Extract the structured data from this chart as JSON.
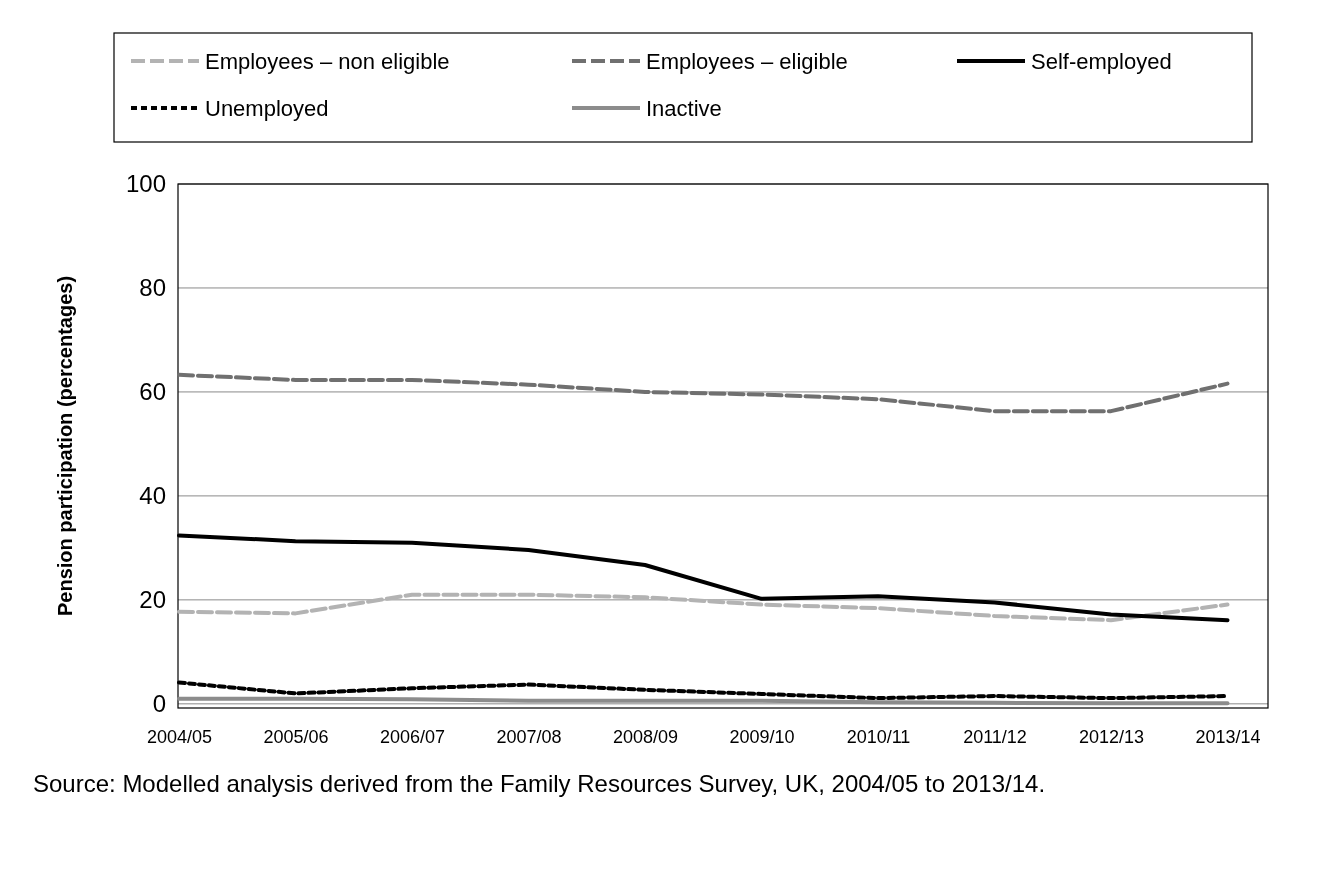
{
  "chart_data": {
    "type": "line",
    "ylabel": "Pension participation (percentages)",
    "categories": [
      "2004/05",
      "2005/06",
      "2006/07",
      "2007/08",
      "2008/09",
      "2009/10",
      "2010/11",
      "2011/12",
      "2012/13",
      "2013/14"
    ],
    "series": [
      {
        "name": "Employees – non eligible",
        "color": "#b3b3b3",
        "line_style": "dashed",
        "values": [
          17.7,
          17.4,
          21.0,
          21.0,
          20.5,
          19.1,
          18.4,
          16.9,
          16.1,
          19.1
        ]
      },
      {
        "name": "Employees – eligible",
        "color": "#707070",
        "line_style": "dashed",
        "values": [
          63.3,
          62.3,
          62.3,
          61.4,
          60.0,
          59.5,
          58.6,
          56.3,
          56.3,
          61.6
        ]
      },
      {
        "name": "Self-employed",
        "color": "#000000",
        "line_style": "solid",
        "values": [
          32.4,
          31.3,
          31.0,
          29.6,
          26.7,
          20.2,
          20.7,
          19.5,
          17.2,
          16.1
        ]
      },
      {
        "name": "Unemployed",
        "color": "#000000",
        "line_style": "dotted",
        "values": [
          4.1,
          2.0,
          3.0,
          3.7,
          2.7,
          1.9,
          1.1,
          1.5,
          1.1,
          1.5
        ]
      },
      {
        "name": "Inactive",
        "color": "#8c8c8c",
        "line_style": "solid",
        "values": [
          1.0,
          1.0,
          0.9,
          0.6,
          0.6,
          0.6,
          0.3,
          0.2,
          0.1,
          0.1
        ]
      }
    ],
    "ylim": [
      -0.8,
      100
    ],
    "yticks": [
      0,
      20,
      40,
      60,
      80,
      100
    ],
    "grid": "y",
    "legend": "top",
    "marker": "none",
    "annotations": [
      "Source: Modelled analysis derived from the Family Resources Survey, UK, 2004/05 to 2013/14."
    ]
  }
}
